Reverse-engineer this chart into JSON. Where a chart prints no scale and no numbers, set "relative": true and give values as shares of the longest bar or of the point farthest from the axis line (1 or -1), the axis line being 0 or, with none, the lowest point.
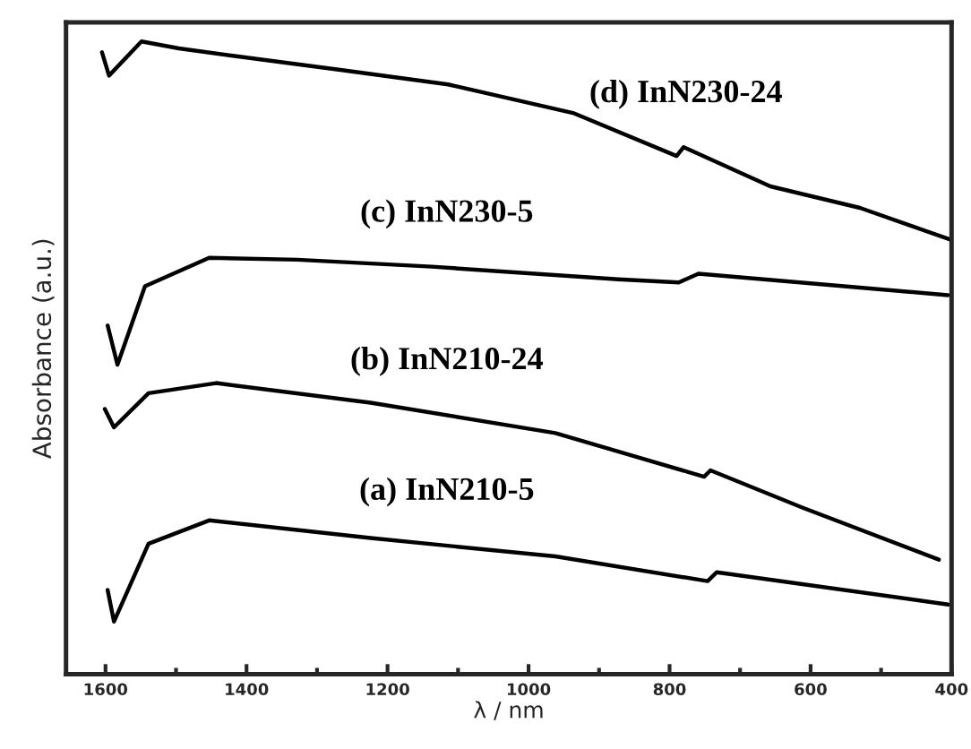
{
  "chart_data": {
    "type": "line",
    "relative": true,
    "xlabel": "λ / nm",
    "ylabel": "Absorbance (a.u.)",
    "xlim": [
      1656,
      400
    ],
    "xticks": [
      1600,
      1400,
      1200,
      1000,
      800,
      600,
      400
    ],
    "grid": false,
    "legend": false,
    "marker": "none",
    "line_style": "solid",
    "series": [
      {
        "name": "(a) InN210-5",
        "color": "#000000",
        "x": [
          1597,
          1588,
          1539,
          1453,
          1224,
          962,
          746,
          733,
          405
        ],
        "values": [
          0.133,
          0.083,
          0.206,
          0.243,
          0.215,
          0.186,
          0.147,
          0.161,
          0.11
        ]
      },
      {
        "name": "(b) InN210-24",
        "color": "#000000",
        "x": [
          1601,
          1588,
          1539,
          1443,
          1224,
          962,
          751,
          742,
          611,
          418
        ],
        "values": [
          0.419,
          0.39,
          0.444,
          0.46,
          0.429,
          0.381,
          0.312,
          0.322,
          0.263,
          0.181
        ]
      },
      {
        "name": "(c) InN230-5",
        "color": "#000000",
        "x": [
          1597,
          1583,
          1544,
          1453,
          1328,
          1137,
          873,
          787,
          759,
          405
        ],
        "values": [
          0.551,
          0.489,
          0.613,
          0.658,
          0.655,
          0.644,
          0.624,
          0.619,
          0.633,
          0.599
        ]
      },
      {
        "name": "(d) InN230-24",
        "color": "#000000",
        "x": [
          1605,
          1595,
          1549,
          1496,
          1417,
          1267,
          1114,
          937,
          790,
          780,
          657,
          530,
          400
        ],
        "values": [
          0.983,
          0.946,
          1.0,
          0.989,
          0.977,
          0.955,
          0.932,
          0.887,
          0.819,
          0.833,
          0.771,
          0.737,
          0.686
        ]
      }
    ]
  }
}
